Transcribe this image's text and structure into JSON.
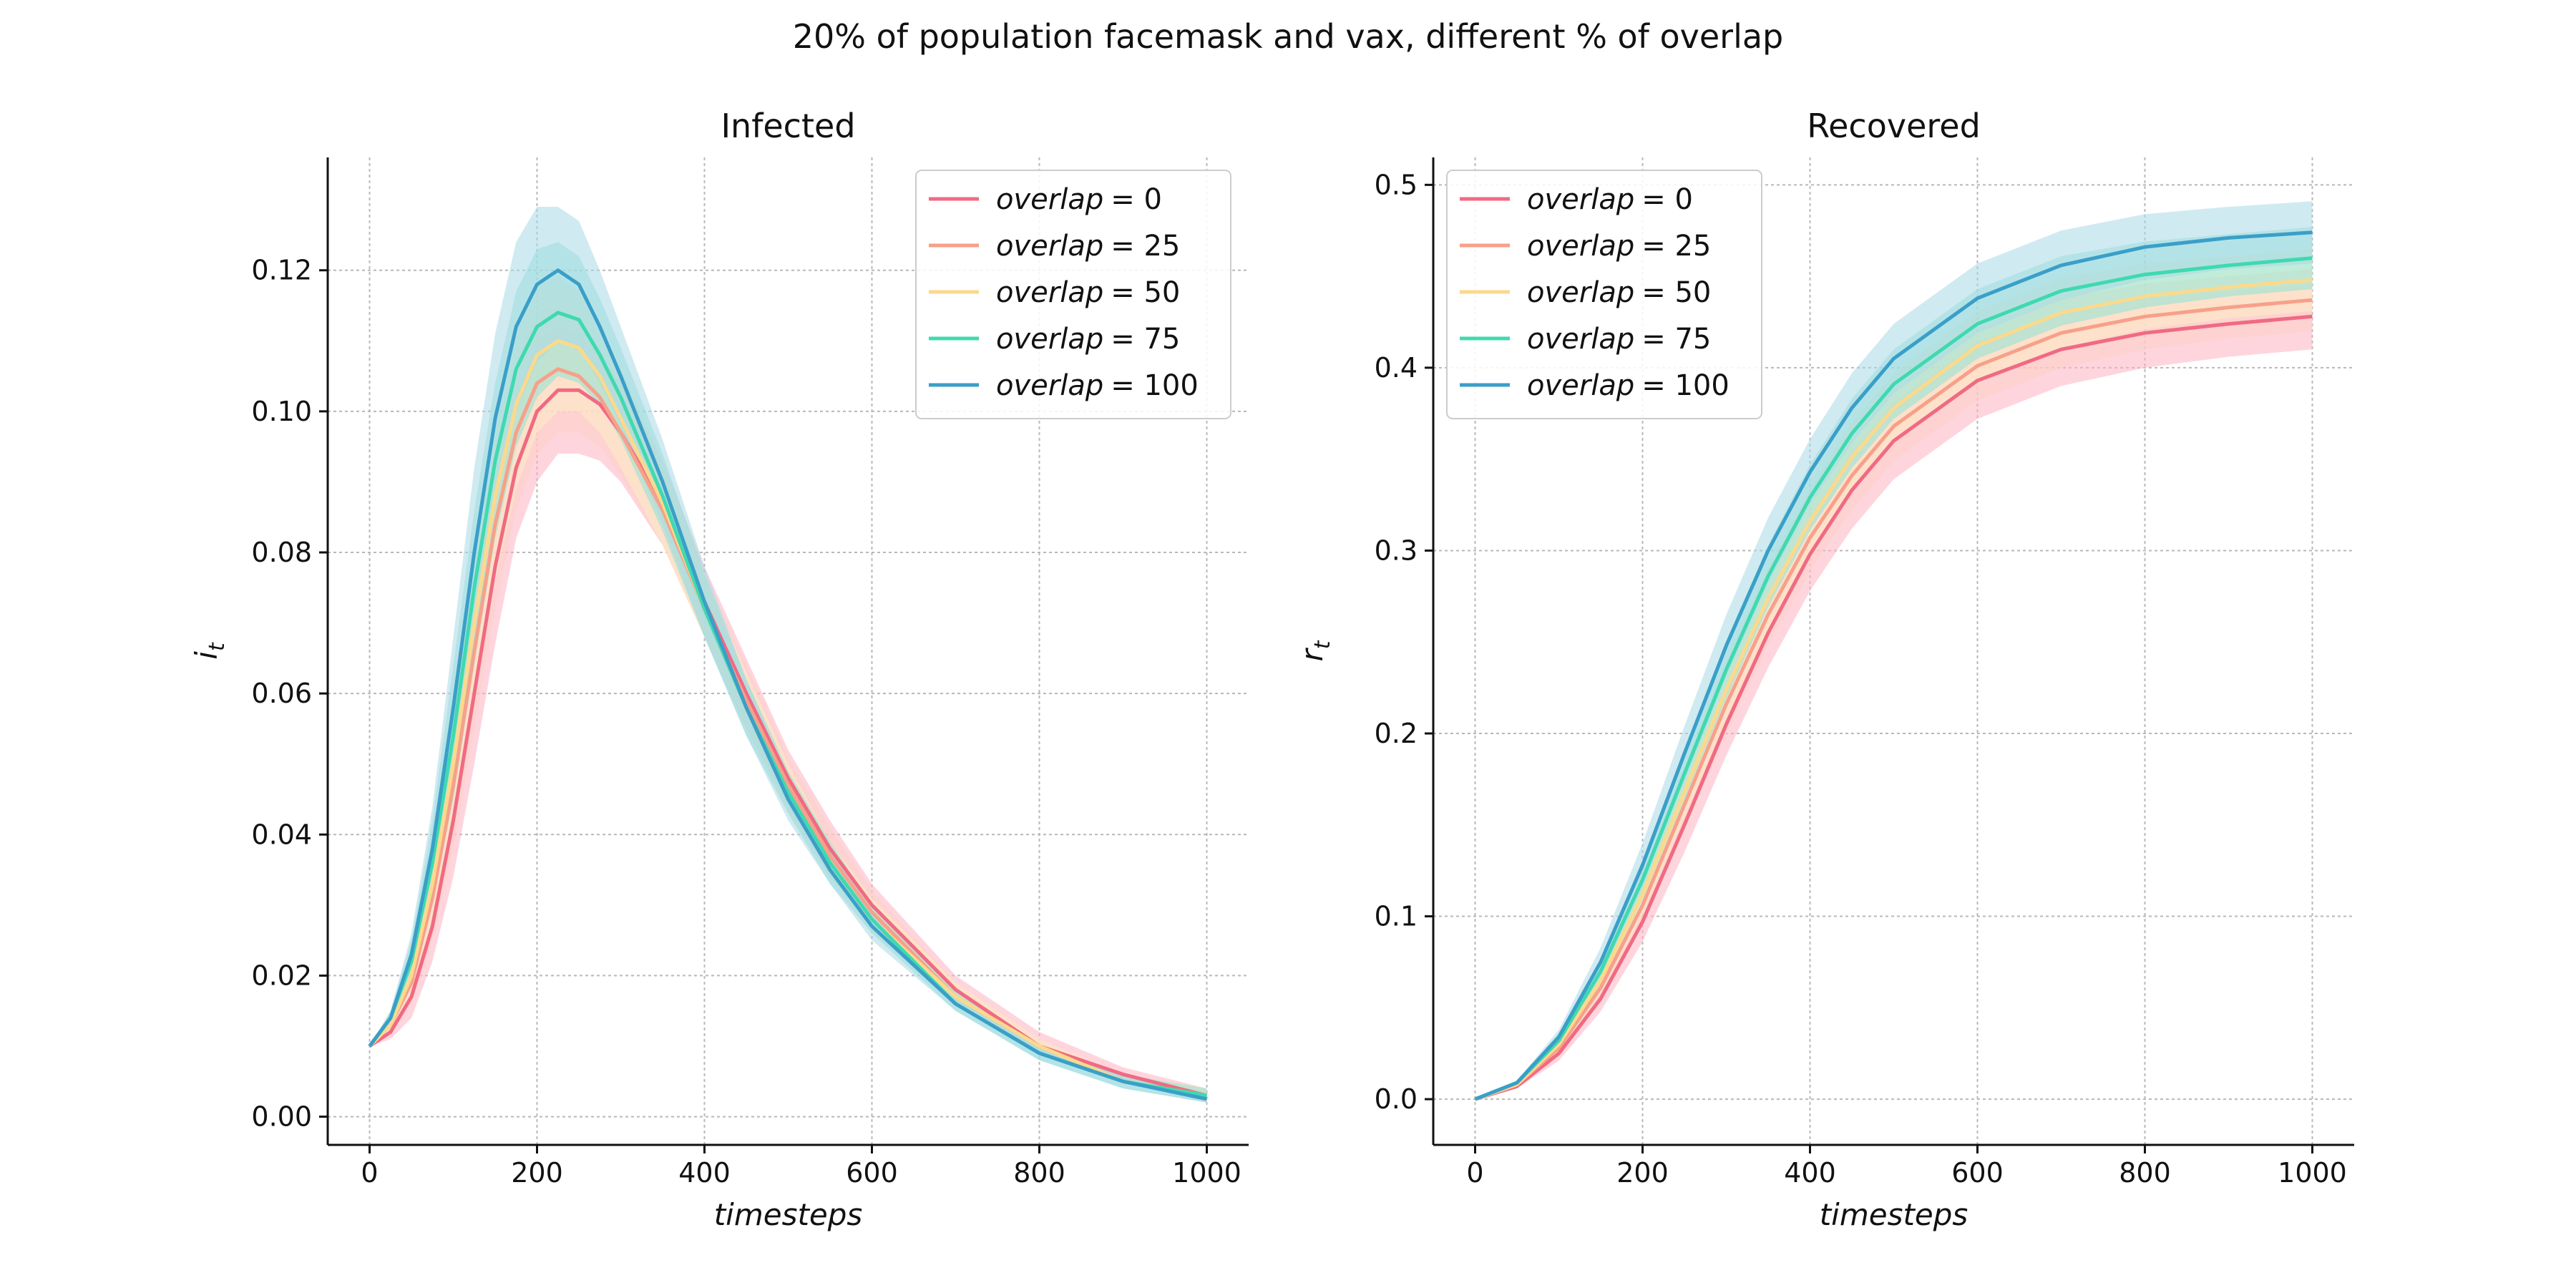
{
  "figure": {
    "title": "20% of population facemask and vax, different % of overlap"
  },
  "chart_data": [
    {
      "type": "line",
      "title": "Infected",
      "xlabel": "timesteps",
      "ylabel": "i_t",
      "ylabel_main": "i",
      "ylabel_sub": "t",
      "xlim": [
        -50,
        1050
      ],
      "ylim": [
        -0.004,
        0.136
      ],
      "xticks": [
        0,
        200,
        400,
        600,
        800,
        1000
      ],
      "yticks": [
        0.0,
        0.02,
        0.04,
        0.06,
        0.08,
        0.1,
        0.12
      ],
      "ytick_labels": [
        "0.00",
        "0.02",
        "0.04",
        "0.06",
        "0.08",
        "0.10",
        "0.12"
      ],
      "grid": true,
      "legend_position": "top-right",
      "series": [
        {
          "name": "overlap = 0",
          "legend_var": "overlap",
          "legend_val": "= 0",
          "color": "#f06a82",
          "band": "#ffb3c1",
          "x": [
            0,
            25,
            50,
            75,
            100,
            125,
            150,
            175,
            200,
            225,
            250,
            275,
            300,
            350,
            400,
            450,
            500,
            550,
            600,
            700,
            800,
            900,
            1000
          ],
          "y": [
            0.01,
            0.012,
            0.017,
            0.027,
            0.042,
            0.06,
            0.078,
            0.092,
            0.1,
            0.103,
            0.103,
            0.101,
            0.097,
            0.087,
            0.073,
            0.06,
            0.048,
            0.038,
            0.03,
            0.018,
            0.01,
            0.006,
            0.003
          ],
          "lower": [
            0.01,
            0.011,
            0.014,
            0.022,
            0.034,
            0.05,
            0.067,
            0.082,
            0.09,
            0.094,
            0.094,
            0.093,
            0.09,
            0.081,
            0.068,
            0.055,
            0.044,
            0.034,
            0.027,
            0.016,
            0.009,
            0.005,
            0.002
          ],
          "upper": [
            0.01,
            0.013,
            0.02,
            0.032,
            0.05,
            0.07,
            0.088,
            0.102,
            0.11,
            0.112,
            0.111,
            0.108,
            0.104,
            0.093,
            0.078,
            0.065,
            0.052,
            0.042,
            0.033,
            0.02,
            0.012,
            0.007,
            0.004
          ]
        },
        {
          "name": "overlap = 25",
          "legend_var": "overlap",
          "legend_val": "= 25",
          "color": "#f7a08a",
          "band": "#fbd0c4",
          "x": [
            0,
            25,
            50,
            75,
            100,
            125,
            150,
            175,
            200,
            225,
            250,
            275,
            300,
            350,
            400,
            450,
            500,
            550,
            600,
            700,
            800,
            900,
            1000
          ],
          "y": [
            0.01,
            0.013,
            0.019,
            0.031,
            0.047,
            0.066,
            0.084,
            0.097,
            0.104,
            0.106,
            0.105,
            0.102,
            0.097,
            0.086,
            0.072,
            0.059,
            0.047,
            0.037,
            0.029,
            0.017,
            0.01,
            0.005,
            0.003
          ],
          "lower": [
            0.01,
            0.012,
            0.016,
            0.025,
            0.038,
            0.055,
            0.072,
            0.086,
            0.094,
            0.097,
            0.097,
            0.095,
            0.091,
            0.081,
            0.068,
            0.055,
            0.044,
            0.034,
            0.027,
            0.016,
            0.009,
            0.005,
            0.002
          ],
          "upper": [
            0.01,
            0.014,
            0.022,
            0.036,
            0.055,
            0.076,
            0.095,
            0.107,
            0.114,
            0.115,
            0.113,
            0.109,
            0.104,
            0.092,
            0.077,
            0.064,
            0.051,
            0.041,
            0.032,
            0.019,
            0.011,
            0.006,
            0.004
          ]
        },
        {
          "name": "overlap = 50",
          "legend_var": "overlap",
          "legend_val": "= 50",
          "color": "#fbd98c",
          "band": "#fdecc5",
          "x": [
            0,
            25,
            50,
            75,
            100,
            125,
            150,
            175,
            200,
            225,
            250,
            275,
            300,
            350,
            400,
            450,
            500,
            550,
            600,
            700,
            800,
            900,
            1000
          ],
          "y": [
            0.01,
            0.013,
            0.02,
            0.033,
            0.05,
            0.07,
            0.088,
            0.101,
            0.108,
            0.11,
            0.109,
            0.105,
            0.099,
            0.087,
            0.072,
            0.058,
            0.046,
            0.036,
            0.028,
            0.017,
            0.01,
            0.005,
            0.003
          ],
          "lower": [
            0.01,
            0.012,
            0.017,
            0.027,
            0.041,
            0.059,
            0.076,
            0.089,
            0.097,
            0.1,
            0.1,
            0.097,
            0.092,
            0.081,
            0.068,
            0.055,
            0.043,
            0.034,
            0.026,
            0.016,
            0.009,
            0.005,
            0.002
          ],
          "upper": [
            0.01,
            0.014,
            0.023,
            0.039,
            0.059,
            0.081,
            0.099,
            0.112,
            0.118,
            0.119,
            0.117,
            0.112,
            0.106,
            0.093,
            0.077,
            0.063,
            0.05,
            0.039,
            0.031,
            0.019,
            0.011,
            0.006,
            0.004
          ]
        },
        {
          "name": "overlap = 75",
          "legend_var": "overlap",
          "legend_val": "= 75",
          "color": "#3fd9b0",
          "band": "#8ee3d6",
          "x": [
            0,
            25,
            50,
            75,
            100,
            125,
            150,
            175,
            200,
            225,
            250,
            275,
            300,
            350,
            400,
            450,
            500,
            550,
            600,
            700,
            800,
            900,
            1000
          ],
          "y": [
            0.01,
            0.014,
            0.022,
            0.036,
            0.054,
            0.075,
            0.093,
            0.106,
            0.112,
            0.114,
            0.113,
            0.108,
            0.102,
            0.088,
            0.072,
            0.058,
            0.046,
            0.036,
            0.028,
            0.016,
            0.009,
            0.005,
            0.003
          ],
          "lower": [
            0.01,
            0.013,
            0.019,
            0.03,
            0.045,
            0.064,
            0.082,
            0.095,
            0.102,
            0.105,
            0.104,
            0.101,
            0.096,
            0.083,
            0.068,
            0.054,
            0.043,
            0.033,
            0.026,
            0.015,
            0.008,
            0.004,
            0.002
          ],
          "upper": [
            0.01,
            0.015,
            0.025,
            0.042,
            0.064,
            0.086,
            0.104,
            0.117,
            0.123,
            0.124,
            0.122,
            0.116,
            0.109,
            0.094,
            0.077,
            0.062,
            0.049,
            0.039,
            0.03,
            0.018,
            0.01,
            0.006,
            0.004
          ]
        },
        {
          "name": "overlap = 100",
          "legend_var": "overlap",
          "legend_val": "= 100",
          "color": "#3a9fc8",
          "band": "#a9d8e6",
          "x": [
            0,
            25,
            50,
            75,
            100,
            125,
            150,
            175,
            200,
            225,
            250,
            275,
            300,
            350,
            400,
            450,
            500,
            550,
            600,
            700,
            800,
            900,
            1000
          ],
          "y": [
            0.01,
            0.014,
            0.023,
            0.038,
            0.058,
            0.08,
            0.099,
            0.112,
            0.118,
            0.12,
            0.118,
            0.112,
            0.105,
            0.09,
            0.073,
            0.058,
            0.045,
            0.035,
            0.027,
            0.016,
            0.009,
            0.005,
            0.0025
          ],
          "lower": [
            0.01,
            0.013,
            0.02,
            0.032,
            0.048,
            0.068,
            0.087,
            0.1,
            0.107,
            0.11,
            0.109,
            0.104,
            0.098,
            0.084,
            0.068,
            0.054,
            0.042,
            0.033,
            0.025,
            0.015,
            0.008,
            0.004,
            0.002
          ],
          "upper": [
            0.01,
            0.015,
            0.026,
            0.044,
            0.068,
            0.092,
            0.111,
            0.124,
            0.129,
            0.129,
            0.127,
            0.12,
            0.112,
            0.096,
            0.078,
            0.062,
            0.048,
            0.038,
            0.029,
            0.017,
            0.01,
            0.006,
            0.003
          ]
        }
      ]
    },
    {
      "type": "line",
      "title": "Recovered",
      "xlabel": "timesteps",
      "ylabel": "r_t",
      "ylabel_main": "r",
      "ylabel_sub": "t",
      "xlim": [
        -50,
        1050
      ],
      "ylim": [
        -0.025,
        0.515
      ],
      "xticks": [
        0,
        200,
        400,
        600,
        800,
        1000
      ],
      "yticks": [
        0.0,
        0.1,
        0.2,
        0.3,
        0.4,
        0.5
      ],
      "ytick_labels": [
        "0.0",
        "0.1",
        "0.2",
        "0.3",
        "0.4",
        "0.5"
      ],
      "grid": true,
      "legend_position": "top-left",
      "series": [
        {
          "name": "overlap = 0",
          "legend_var": "overlap",
          "legend_val": "= 0",
          "color": "#f06a82",
          "band": "#ffb3c1",
          "x": [
            0,
            50,
            100,
            150,
            200,
            250,
            300,
            350,
            400,
            450,
            500,
            600,
            700,
            800,
            900,
            1000
          ],
          "y": [
            0.0,
            0.007,
            0.025,
            0.055,
            0.097,
            0.15,
            0.205,
            0.255,
            0.298,
            0.333,
            0.36,
            0.393,
            0.41,
            0.419,
            0.424,
            0.428
          ],
          "lower": [
            0.0,
            0.006,
            0.021,
            0.048,
            0.086,
            0.135,
            0.188,
            0.236,
            0.278,
            0.312,
            0.339,
            0.372,
            0.39,
            0.4,
            0.406,
            0.41
          ],
          "upper": [
            0.0,
            0.008,
            0.029,
            0.062,
            0.108,
            0.165,
            0.222,
            0.274,
            0.318,
            0.354,
            0.381,
            0.414,
            0.43,
            0.438,
            0.442,
            0.446
          ]
        },
        {
          "name": "overlap = 25",
          "legend_var": "overlap",
          "legend_val": "= 25",
          "color": "#f7a08a",
          "band": "#fbd0c4",
          "x": [
            0,
            50,
            100,
            150,
            200,
            250,
            300,
            350,
            400,
            450,
            500,
            600,
            700,
            800,
            900,
            1000
          ],
          "y": [
            0.0,
            0.008,
            0.028,
            0.061,
            0.106,
            0.161,
            0.216,
            0.265,
            0.307,
            0.341,
            0.368,
            0.401,
            0.419,
            0.428,
            0.433,
            0.437
          ],
          "lower": [
            0.0,
            0.007,
            0.024,
            0.054,
            0.095,
            0.147,
            0.2,
            0.248,
            0.289,
            0.322,
            0.349,
            0.382,
            0.4,
            0.41,
            0.416,
            0.42
          ],
          "upper": [
            0.0,
            0.009,
            0.032,
            0.068,
            0.117,
            0.175,
            0.232,
            0.282,
            0.325,
            0.36,
            0.387,
            0.42,
            0.438,
            0.446,
            0.45,
            0.454
          ]
        },
        {
          "name": "overlap = 50",
          "legend_var": "overlap",
          "legend_val": "= 50",
          "color": "#fbd98c",
          "band": "#fdecc5",
          "x": [
            0,
            50,
            100,
            150,
            200,
            250,
            300,
            350,
            400,
            450,
            500,
            600,
            700,
            800,
            900,
            1000
          ],
          "y": [
            0.0,
            0.008,
            0.03,
            0.065,
            0.112,
            0.168,
            0.224,
            0.274,
            0.316,
            0.351,
            0.378,
            0.412,
            0.43,
            0.439,
            0.444,
            0.448
          ],
          "lower": [
            0.0,
            0.007,
            0.026,
            0.058,
            0.101,
            0.154,
            0.208,
            0.257,
            0.298,
            0.332,
            0.359,
            0.393,
            0.411,
            0.421,
            0.427,
            0.431
          ],
          "upper": [
            0.0,
            0.009,
            0.034,
            0.072,
            0.123,
            0.182,
            0.24,
            0.291,
            0.334,
            0.37,
            0.397,
            0.431,
            0.449,
            0.457,
            0.461,
            0.465
          ]
        },
        {
          "name": "overlap = 75",
          "legend_var": "overlap",
          "legend_val": "= 75",
          "color": "#3fd9b0",
          "band": "#8ee3d6",
          "x": [
            0,
            50,
            100,
            150,
            200,
            250,
            300,
            350,
            400,
            450,
            500,
            600,
            700,
            800,
            900,
            1000
          ],
          "y": [
            0.0,
            0.009,
            0.032,
            0.07,
            0.12,
            0.178,
            0.235,
            0.286,
            0.329,
            0.364,
            0.391,
            0.424,
            0.442,
            0.451,
            0.456,
            0.46
          ],
          "lower": [
            0.0,
            0.008,
            0.028,
            0.063,
            0.109,
            0.164,
            0.219,
            0.269,
            0.311,
            0.345,
            0.372,
            0.405,
            0.423,
            0.433,
            0.439,
            0.443
          ],
          "upper": [
            0.0,
            0.01,
            0.036,
            0.077,
            0.131,
            0.192,
            0.251,
            0.303,
            0.347,
            0.383,
            0.41,
            0.443,
            0.461,
            0.469,
            0.473,
            0.477
          ]
        },
        {
          "name": "overlap = 100",
          "legend_var": "overlap",
          "legend_val": "= 100",
          "color": "#3a9fc8",
          "band": "#a9d8e6",
          "x": [
            0,
            50,
            100,
            150,
            200,
            250,
            300,
            350,
            400,
            450,
            500,
            600,
            700,
            800,
            900,
            1000
          ],
          "y": [
            0.0,
            0.009,
            0.034,
            0.075,
            0.128,
            0.189,
            0.248,
            0.3,
            0.343,
            0.378,
            0.405,
            0.438,
            0.456,
            0.466,
            0.471,
            0.474
          ],
          "lower": [
            0.0,
            0.008,
            0.03,
            0.067,
            0.116,
            0.174,
            0.231,
            0.282,
            0.325,
            0.359,
            0.386,
            0.419,
            0.437,
            0.448,
            0.454,
            0.457
          ],
          "upper": [
            0.0,
            0.01,
            0.038,
            0.083,
            0.14,
            0.204,
            0.265,
            0.318,
            0.361,
            0.397,
            0.424,
            0.457,
            0.475,
            0.484,
            0.488,
            0.491
          ]
        }
      ]
    }
  ]
}
